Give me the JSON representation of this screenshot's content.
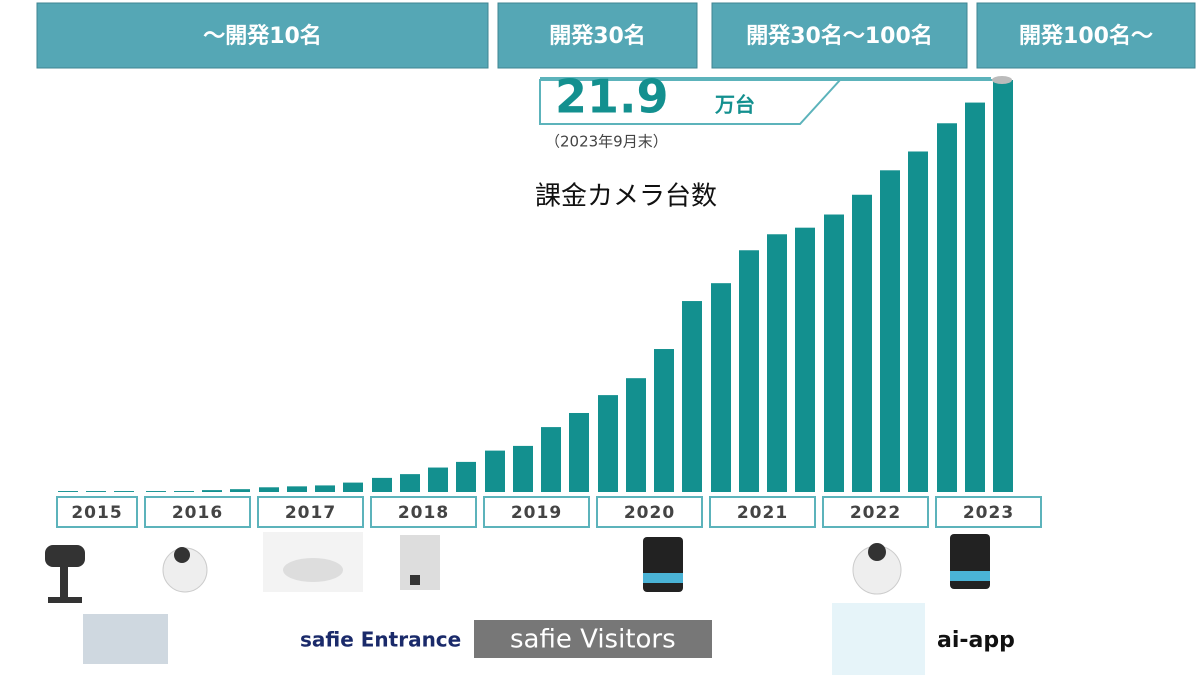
{
  "headers": [
    "〜開発10名",
    "開発30名",
    "開発30名〜100名",
    "開発100名〜"
  ],
  "chart_data": {
    "type": "bar",
    "title": "課金カメラ台数",
    "color": "#13908f",
    "callout_unit": "万台",
    "callout_note": "（2023年9月末）",
    "groups": [
      {
        "label": "2015",
        "values": [
          0.05,
          0.05,
          0.05
        ]
      },
      {
        "label": "2016",
        "values": [
          0.05,
          0.05,
          0.1,
          0.15
        ]
      },
      {
        "label": "2017",
        "values": [
          0.25,
          0.3,
          0.35,
          0.5
        ]
      },
      {
        "label": "2018",
        "values": [
          0.75,
          0.95,
          1.3,
          1.6
        ]
      },
      {
        "label": "2019",
        "values": [
          2.2,
          2.45,
          3.45,
          4.2
        ]
      },
      {
        "label": "2020",
        "values": [
          5.15,
          6.05,
          7.6,
          10.15
        ]
      },
      {
        "label": "2021",
        "values": [
          11.1,
          12.85,
          13.7,
          14.05
        ]
      },
      {
        "label": "2022",
        "values": [
          14.75,
          15.8,
          17.1,
          18.1
        ]
      },
      {
        "label": "2023",
        "values": [
          19.6,
          20.7,
          21.9
        ]
      }
    ]
  },
  "products": [
    "safie Entrance",
    "safie Visitors",
    "ai-app"
  ]
}
